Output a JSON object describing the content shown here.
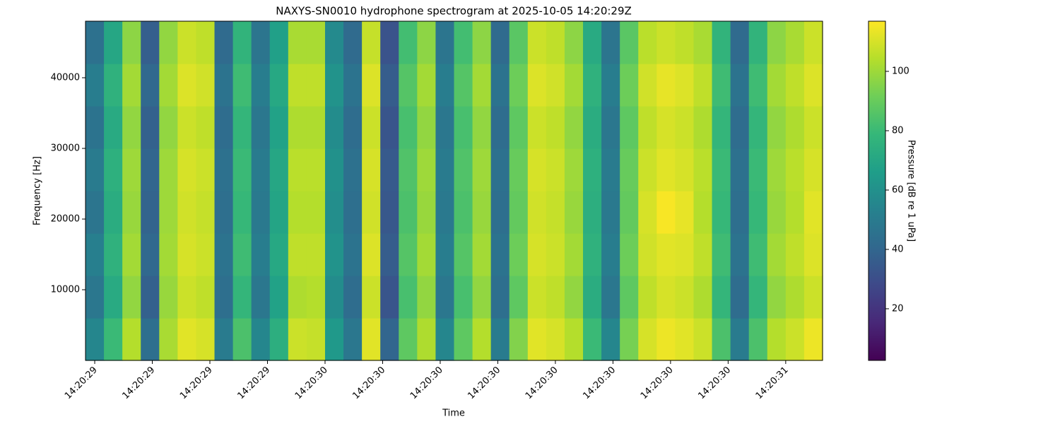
{
  "chart_data": {
    "type": "heatmap",
    "title": "NAXYS-SN0010 hydrophone spectrogram at 2025-10-05 14:20:29Z",
    "xlabel": "Time",
    "ylabel": "Frequency [Hz]",
    "colorbar_label": "Pressure [dB re 1 uPa]",
    "colormap": [
      "#440154",
      "#482878",
      "#3e4989",
      "#31688e",
      "#26828e",
      "#1f9e89",
      "#35b779",
      "#6ece58",
      "#b5de2b",
      "#fde725"
    ],
    "x": [
      29.48,
      29.52,
      29.56,
      29.6,
      29.64,
      29.68,
      29.72,
      29.76,
      29.8,
      29.84,
      29.88,
      29.92,
      29.96,
      30.0,
      30.04,
      30.08,
      30.12,
      30.16,
      30.2,
      30.24,
      30.28,
      30.32,
      30.36,
      30.4,
      30.44,
      30.48,
      30.52,
      30.56,
      30.6,
      30.64,
      30.68,
      30.72,
      30.76,
      30.8,
      30.84,
      30.88,
      30.92,
      30.96,
      31.0,
      31.04,
      31.08
    ],
    "y": [
      0,
      6000,
      12000,
      18000,
      24000,
      30000,
      36000,
      42000,
      48000
    ],
    "z": [
      [
        55,
        80,
        104,
        44,
        102,
        112,
        110,
        50,
        84,
        55,
        74,
        108,
        107,
        64,
        48,
        112,
        40,
        88,
        103,
        55,
        88,
        104,
        50,
        95,
        112,
        110,
        104,
        80,
        55,
        93,
        110,
        114,
        112,
        108,
        84,
        50,
        84,
        104,
        108,
        114
      ],
      [
        48,
        72,
        98,
        38,
        99,
        108,
        106,
        44,
        78,
        48,
        68,
        103,
        104,
        58,
        43,
        108,
        33,
        83,
        98,
        48,
        83,
        98,
        44,
        88,
        108,
        106,
        98,
        73,
        48,
        88,
        106,
        110,
        108,
        103,
        78,
        43,
        78,
        98,
        103,
        108
      ],
      [
        52,
        76,
        101,
        41,
        101,
        110,
        108,
        46,
        81,
        51,
        71,
        106,
        106,
        61,
        46,
        111,
        36,
        86,
        101,
        51,
        86,
        101,
        46,
        91,
        110,
        108,
        101,
        76,
        51,
        91,
        109,
        112,
        111,
        106,
        81,
        46,
        81,
        101,
        106,
        111
      ],
      [
        47,
        73,
        99,
        39,
        100,
        109,
        107,
        44,
        79,
        49,
        69,
        104,
        104,
        59,
        44,
        109,
        34,
        84,
        99,
        49,
        84,
        99,
        44,
        89,
        109,
        107,
        99,
        74,
        49,
        89,
        110,
        116,
        113,
        104,
        79,
        44,
        79,
        99,
        104,
        112
      ],
      [
        50,
        75,
        100,
        40,
        100,
        110,
        108,
        45,
        80,
        50,
        70,
        105,
        105,
        60,
        45,
        110,
        35,
        85,
        100,
        50,
        85,
        100,
        45,
        90,
        110,
        108,
        100,
        75,
        50,
        90,
        108,
        112,
        110,
        105,
        80,
        45,
        80,
        100,
        105,
        110
      ],
      [
        46,
        72,
        98,
        38,
        98,
        108,
        106,
        43,
        78,
        48,
        68,
        103,
        103,
        58,
        43,
        108,
        33,
        83,
        98,
        48,
        83,
        98,
        43,
        88,
        108,
        106,
        98,
        73,
        48,
        88,
        106,
        110,
        108,
        103,
        78,
        43,
        78,
        98,
        103,
        108
      ],
      [
        51,
        76,
        101,
        41,
        101,
        111,
        109,
        46,
        81,
        51,
        71,
        106,
        106,
        61,
        46,
        111,
        36,
        86,
        101,
        51,
        86,
        101,
        46,
        91,
        111,
        109,
        101,
        76,
        51,
        91,
        109,
        113,
        111,
        106,
        81,
        46,
        81,
        101,
        106,
        111
      ],
      [
        45,
        70,
        97,
        37,
        98,
        108,
        106,
        42,
        77,
        47,
        67,
        102,
        102,
        57,
        42,
        107,
        32,
        82,
        97,
        47,
        82,
        97,
        42,
        87,
        108,
        106,
        97,
        72,
        47,
        87,
        105,
        108,
        106,
        102,
        77,
        42,
        77,
        97,
        102,
        108
      ]
    ],
    "xlim": [
      29.48,
      31.08
    ],
    "xticks": [
      {
        "value": 29.5,
        "label": "14:20:29"
      },
      {
        "value": 29.625,
        "label": "14:20:29"
      },
      {
        "value": 29.75,
        "label": "14:20:29"
      },
      {
        "value": 29.875,
        "label": "14:20:29"
      },
      {
        "value": 30.0,
        "label": "14:20:30"
      },
      {
        "value": 30.125,
        "label": "14:20:30"
      },
      {
        "value": 30.25,
        "label": "14:20:30"
      },
      {
        "value": 30.375,
        "label": "14:20:30"
      },
      {
        "value": 30.5,
        "label": "14:20:30"
      },
      {
        "value": 30.625,
        "label": "14:20:30"
      },
      {
        "value": 30.75,
        "label": "14:20:30"
      },
      {
        "value": 30.875,
        "label": "14:20:30"
      },
      {
        "value": 31.0,
        "label": "14:20:31"
      }
    ],
    "ylim": [
      0,
      48000
    ],
    "yticks": [
      10000,
      20000,
      30000,
      40000
    ],
    "clim": [
      2.6,
      116.9
    ],
    "cticks": [
      20,
      40,
      60,
      80,
      100
    ]
  }
}
